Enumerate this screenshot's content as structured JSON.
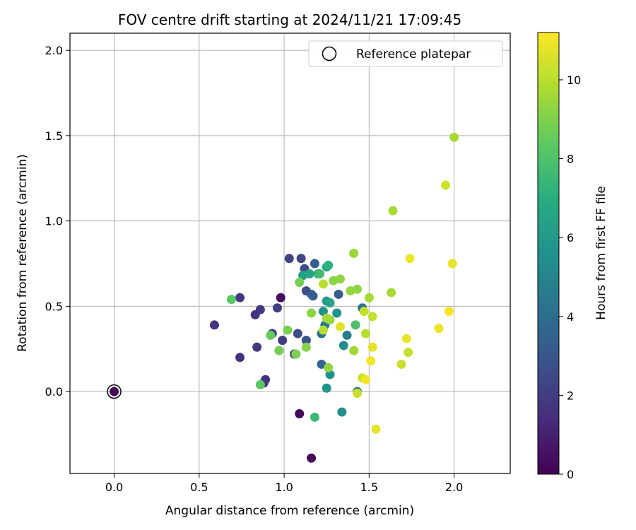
{
  "chart_data": {
    "type": "scatter",
    "title": "FOV centre drift starting at 2024/11/21 17:09:45",
    "xlabel": "Angular distance from reference (arcmin)",
    "ylabel": "Rotation from reference (arcmin)",
    "xlim": [
      -0.26,
      2.33
    ],
    "ylim": [
      -0.48,
      2.1
    ],
    "xticks": [
      "0.0",
      "0.5",
      "1.0",
      "1.5",
      "2.0"
    ],
    "yticks": [
      "0.0",
      "0.5",
      "1.0",
      "1.5",
      "2.0"
    ],
    "grid": true,
    "legend": {
      "position": "top-right",
      "entries": [
        "Reference platepar"
      ]
    },
    "reference_point": {
      "x": 0.0,
      "y": 0.0
    },
    "colorbar": {
      "label": "Hours from first FF file",
      "colormap": "viridis",
      "range": [
        0,
        11.2
      ],
      "ticks": [
        "0",
        "2",
        "4",
        "6",
        "8",
        "10"
      ]
    },
    "points": [
      {
        "x": 0.0,
        "y": 0.0,
        "h": 0.0
      },
      {
        "x": 0.98,
        "y": 0.55,
        "h": 0.3
      },
      {
        "x": 1.09,
        "y": -0.13,
        "h": 0.3
      },
      {
        "x": 1.16,
        "y": -0.39,
        "h": 0.3
      },
      {
        "x": 0.59,
        "y": 0.39,
        "h": 1.7
      },
      {
        "x": 0.74,
        "y": 0.55,
        "h": 1.8
      },
      {
        "x": 0.74,
        "y": 0.2,
        "h": 1.6
      },
      {
        "x": 0.83,
        "y": 0.45,
        "h": 1.6
      },
      {
        "x": 0.86,
        "y": 0.48,
        "h": 1.8
      },
      {
        "x": 0.84,
        "y": 0.26,
        "h": 1.9
      },
      {
        "x": 0.88,
        "y": 0.05,
        "h": 1.6
      },
      {
        "x": 0.89,
        "y": 0.07,
        "h": 1.7
      },
      {
        "x": 0.93,
        "y": 0.34,
        "h": 1.9
      },
      {
        "x": 0.96,
        "y": 0.49,
        "h": 2.1
      },
      {
        "x": 0.99,
        "y": 0.3,
        "h": 2.0
      },
      {
        "x": 1.03,
        "y": 0.78,
        "h": 2.2
      },
      {
        "x": 1.06,
        "y": 0.22,
        "h": 2.6
      },
      {
        "x": 1.1,
        "y": 0.78,
        "h": 2.3
      },
      {
        "x": 1.12,
        "y": 0.72,
        "h": 2.6
      },
      {
        "x": 1.13,
        "y": 0.59,
        "h": 2.7
      },
      {
        "x": 1.13,
        "y": 0.3,
        "h": 2.8
      },
      {
        "x": 1.16,
        "y": 0.57,
        "h": 3.0
      },
      {
        "x": 1.08,
        "y": 0.34,
        "h": 2.6
      },
      {
        "x": 1.18,
        "y": 0.75,
        "h": 3.3
      },
      {
        "x": 1.17,
        "y": 0.56,
        "h": 3.4
      },
      {
        "x": 1.22,
        "y": 0.16,
        "h": 3.6
      },
      {
        "x": 1.22,
        "y": 0.34,
        "h": 4.2
      },
      {
        "x": 1.24,
        "y": 0.39,
        "h": 4.5
      },
      {
        "x": 1.32,
        "y": 0.57,
        "h": 3.3
      },
      {
        "x": 1.46,
        "y": 0.49,
        "h": 4.2
      },
      {
        "x": 1.37,
        "y": 0.33,
        "h": 4.7
      },
      {
        "x": 1.43,
        "y": 0.0,
        "h": 4.8
      },
      {
        "x": 1.35,
        "y": 0.27,
        "h": 5.4
      },
      {
        "x": 1.34,
        "y": -0.12,
        "h": 5.4
      },
      {
        "x": 1.27,
        "y": 0.1,
        "h": 5.6
      },
      {
        "x": 1.25,
        "y": 0.02,
        "h": 5.8
      },
      {
        "x": 1.31,
        "y": 0.46,
        "h": 5.6
      },
      {
        "x": 1.23,
        "y": 0.47,
        "h": 5.7
      },
      {
        "x": 1.25,
        "y": 0.53,
        "h": 6.1
      },
      {
        "x": 1.27,
        "y": 0.52,
        "h": 6.4
      },
      {
        "x": 1.11,
        "y": 0.68,
        "h": 6.3
      },
      {
        "x": 1.15,
        "y": 0.69,
        "h": 6.6
      },
      {
        "x": 1.2,
        "y": 0.69,
        "h": 6.8
      },
      {
        "x": 1.25,
        "y": 0.73,
        "h": 6.5
      },
      {
        "x": 1.26,
        "y": 0.74,
        "h": 7.2
      },
      {
        "x": 1.18,
        "y": -0.15,
        "h": 7.5
      },
      {
        "x": 1.21,
        "y": 0.69,
        "h": 7.7
      },
      {
        "x": 1.42,
        "y": 0.39,
        "h": 7.9
      },
      {
        "x": 0.69,
        "y": 0.54,
        "h": 8.3
      },
      {
        "x": 0.86,
        "y": 0.04,
        "h": 8.3
      },
      {
        "x": 0.92,
        "y": 0.33,
        "h": 8.5
      },
      {
        "x": 0.97,
        "y": 0.24,
        "h": 8.8
      },
      {
        "x": 1.02,
        "y": 0.36,
        "h": 8.9
      },
      {
        "x": 1.07,
        "y": 0.22,
        "h": 9.0
      },
      {
        "x": 1.09,
        "y": 0.64,
        "h": 8.8
      },
      {
        "x": 1.13,
        "y": 0.26,
        "h": 9.1
      },
      {
        "x": 1.16,
        "y": 0.46,
        "h": 9.2
      },
      {
        "x": 1.26,
        "y": 0.14,
        "h": 9.3
      },
      {
        "x": 1.27,
        "y": 0.42,
        "h": 9.4
      },
      {
        "x": 1.29,
        "y": 0.65,
        "h": 9.2
      },
      {
        "x": 1.33,
        "y": 0.66,
        "h": 9.3
      },
      {
        "x": 1.39,
        "y": 0.59,
        "h": 9.4
      },
      {
        "x": 1.43,
        "y": 0.6,
        "h": 9.3
      },
      {
        "x": 1.41,
        "y": 0.81,
        "h": 9.4
      },
      {
        "x": 1.41,
        "y": 0.24,
        "h": 9.6
      },
      {
        "x": 1.5,
        "y": 0.55,
        "h": 9.7
      },
      {
        "x": 1.48,
        "y": 0.34,
        "h": 9.9
      },
      {
        "x": 1.63,
        "y": 0.58,
        "h": 9.7
      },
      {
        "x": 1.64,
        "y": 1.06,
        "h": 9.7
      },
      {
        "x": 2.0,
        "y": 1.49,
        "h": 9.7
      },
      {
        "x": 1.25,
        "y": 0.43,
        "h": 9.6
      },
      {
        "x": 1.23,
        "y": 0.63,
        "h": 10.0
      },
      {
        "x": 1.23,
        "y": 0.36,
        "h": 10.0
      },
      {
        "x": 1.47,
        "y": 0.47,
        "h": 10.2
      },
      {
        "x": 1.52,
        "y": 0.44,
        "h": 10.2
      },
      {
        "x": 1.43,
        "y": -0.01,
        "h": 10.3
      },
      {
        "x": 1.46,
        "y": 0.08,
        "h": 10.4
      },
      {
        "x": 1.69,
        "y": 0.16,
        "h": 10.3
      },
      {
        "x": 1.73,
        "y": 0.23,
        "h": 10.2
      },
      {
        "x": 1.95,
        "y": 1.21,
        "h": 10.4
      },
      {
        "x": 1.33,
        "y": 0.38,
        "h": 10.7
      },
      {
        "x": 1.52,
        "y": 0.26,
        "h": 10.8
      },
      {
        "x": 1.54,
        "y": -0.22,
        "h": 10.8
      },
      {
        "x": 1.72,
        "y": 0.31,
        "h": 10.8
      },
      {
        "x": 1.74,
        "y": 0.78,
        "h": 10.9
      },
      {
        "x": 1.91,
        "y": 0.37,
        "h": 10.9
      },
      {
        "x": 1.99,
        "y": 0.75,
        "h": 10.8
      },
      {
        "x": 1.51,
        "y": 0.18,
        "h": 11.0
      },
      {
        "x": 1.48,
        "y": 0.07,
        "h": 11.0
      },
      {
        "x": 1.97,
        "y": 0.47,
        "h": 11.1
      }
    ]
  }
}
